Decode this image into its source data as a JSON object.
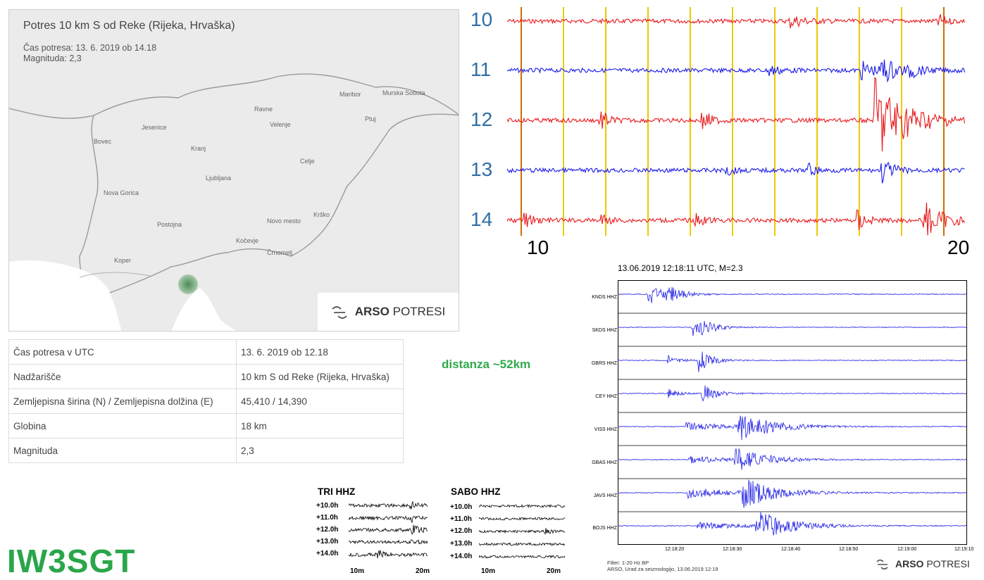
{
  "map": {
    "title": "Potres 10 km S od Reke (Rijeka, Hrvaška)",
    "time_line": "Čas potresa: 13. 6. 2019 ob 14.18",
    "magnitude_line": "Magnituda: 2,3",
    "cities": [
      "Maribor",
      "Murska Sobota",
      "Ravne",
      "Ptuj",
      "Jesenice",
      "Velenje",
      "Bovec",
      "Kranj",
      "Celje",
      "Ljubljana",
      "Nova Gorica",
      "Krško",
      "Postojna",
      "Novo mesto",
      "Kočevje",
      "Koper",
      "Črnomelj"
    ],
    "badge_brand": "ARSO",
    "badge_product": "POTRESI"
  },
  "table": [
    {
      "label": "Čas potresa v UTC",
      "value": "13. 6. 2019 ob 12.18"
    },
    {
      "label": "Nadžarišče",
      "value": "10 km S od Reke (Rijeka, Hrvaška)"
    },
    {
      "label": "Zemljepisna širina (N) / Zemljepisna dolžina (E)",
      "value": "45,410 / 14,390"
    },
    {
      "label": "Globina",
      "value": "18 km"
    },
    {
      "label": "Magnituda",
      "value": "2,3"
    }
  ],
  "distance_note": "distanza ~52km",
  "callsign": "IW3SGT",
  "helicorder": {
    "rows": [
      "10",
      "11",
      "12",
      "13",
      "14"
    ],
    "x_start": "10",
    "x_end": "20",
    "colors": [
      "#e8191d",
      "#1a1ae6",
      "#e8191d",
      "#1a1ae6",
      "#e8191d"
    ]
  },
  "tri": {
    "title": "TRI HHZ",
    "rows": [
      "+10.0h",
      "+11.0h",
      "+12.0h",
      "+13.0h",
      "+14.0h"
    ],
    "x_start": "10m",
    "x_end": "20m"
  },
  "sabo": {
    "title": "SABO HHZ",
    "rows": [
      "+10.0h",
      "+11.0h",
      "+12.0h",
      "+13.0h",
      "+14.0h"
    ],
    "x_start": "10m",
    "x_end": "20m"
  },
  "seismograms": {
    "title": "13.06.2019  12:18:11 UTC, M=2.3",
    "stations": [
      "KNDS HHZ",
      "SKDS HHZ",
      "GBRS HHZ",
      "CEY HHZ",
      "VISS HHZ",
      "GBAS HHZ",
      "JAVS HHZ",
      "BOJS HHZ"
    ],
    "times": [
      "12:18:20",
      "12:18:30",
      "12:18:40",
      "12:18:50",
      "12:19:00",
      "12:19:10"
    ],
    "filter_line": "Filter: 1-20 Hz BP",
    "credit_line": "ARSO, Urad za seizmologijo, 13.06.2019  12:19",
    "brand": "ARSO",
    "product": "POTRESI"
  }
}
